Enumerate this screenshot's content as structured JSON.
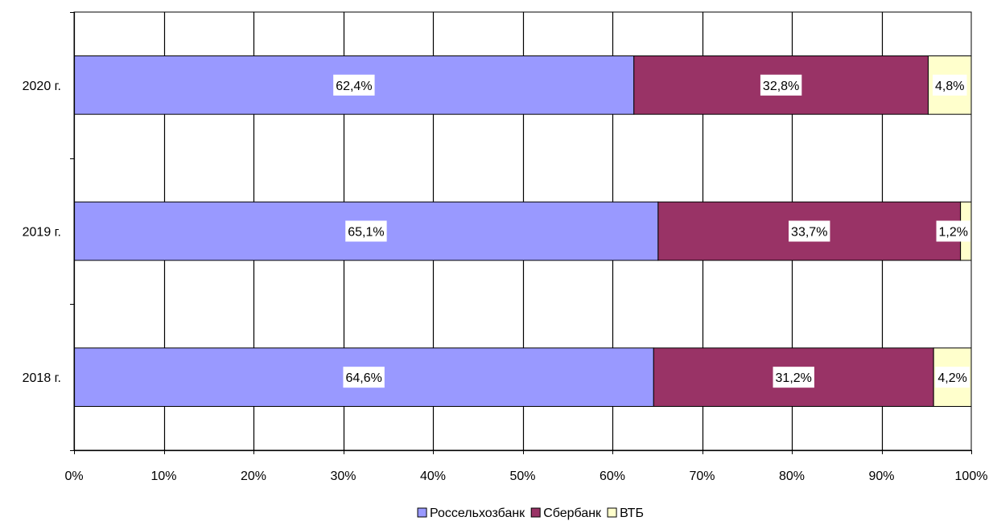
{
  "chart_data": {
    "type": "bar",
    "orientation": "horizontal",
    "stacked": "percent",
    "categories": [
      "2018 г.",
      "2019 г.",
      "2020 г."
    ],
    "series": [
      {
        "name": "Россельхозбанк",
        "values": [
          64.6,
          65.1,
          62.4
        ],
        "labels": [
          "64,6%",
          "65,1%",
          "62,4%"
        ],
        "color": "#9999ff"
      },
      {
        "name": "Сбербанк",
        "values": [
          31.2,
          33.7,
          32.8
        ],
        "labels": [
          "31,2%",
          "33,7%",
          "32,8%"
        ],
        "color": "#993366"
      },
      {
        "name": "ВТБ",
        "values": [
          4.2,
          1.2,
          4.8
        ],
        "labels": [
          "4,2%",
          "1,2%",
          "4,8%"
        ],
        "color": "#ffffcc"
      }
    ],
    "x_ticks": [
      "0%",
      "10%",
      "20%",
      "30%",
      "40%",
      "50%",
      "60%",
      "70%",
      "80%",
      "90%",
      "100%"
    ],
    "xlim": [
      0,
      100
    ],
    "grid": true,
    "legend_position": "bottom"
  }
}
